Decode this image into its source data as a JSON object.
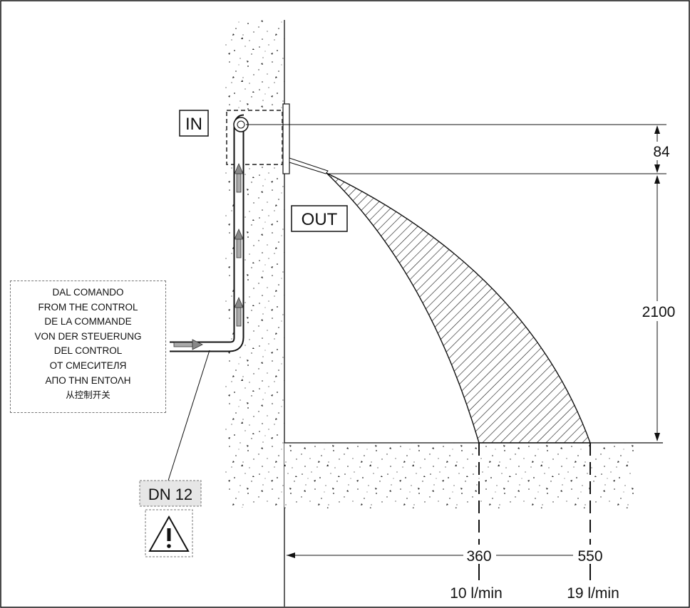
{
  "labels": {
    "in": "IN",
    "out": "OUT",
    "pipe_size": "DN 12"
  },
  "source_note": {
    "lines": [
      "DAL COMANDO",
      "FROM THE CONTROL",
      "DE LA COMMANDE",
      "VON DER STEUERUNG",
      "DEL CONTROL",
      "ОТ СМЕСИТЕЛЯ",
      "ΑΠΟ ΤΗΝ ΕΝΤΟΛΗ",
      "从控制开关"
    ]
  },
  "dimensions": {
    "inlet_to_outlet_mm": "84",
    "outlet_height_mm": "2100",
    "near_throw_mm": "360",
    "far_throw_mm": "550",
    "near_flow": "10 l/min",
    "far_flow": "19 l/min"
  },
  "colors": {
    "line": "#111111",
    "label_fill": "#e6e6e6",
    "hatch": "#111111",
    "dotted_border": "#777777"
  },
  "icons": {
    "warning": "warning-triangle-icon",
    "flow_arrow": "flow-arrow-icon"
  }
}
